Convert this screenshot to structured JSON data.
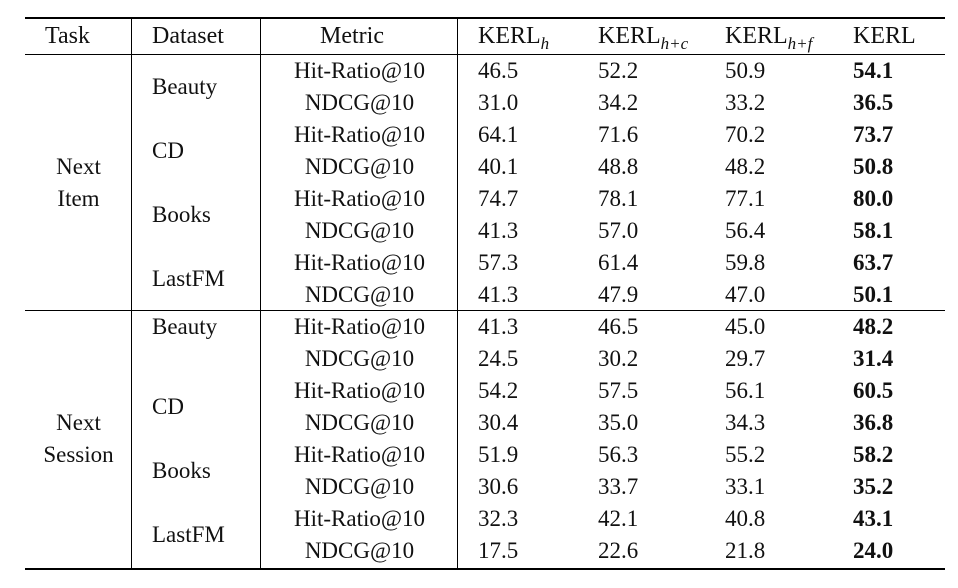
{
  "header": {
    "task": "Task",
    "dataset": "Dataset",
    "metric": "Metric",
    "variants": [
      {
        "base": "KERL",
        "sub": "h"
      },
      {
        "base": "KERL",
        "sub": "h+c"
      },
      {
        "base": "KERL",
        "sub": "h+f"
      },
      {
        "base": "KERL",
        "sub": ""
      }
    ]
  },
  "groups": [
    {
      "task_lines": [
        "Next",
        "Item"
      ],
      "datasets": [
        {
          "name": "Beauty",
          "rows": [
            {
              "metric": "Hit-Ratio@10",
              "values": [
                "46.5",
                "52.2",
                "50.9",
                "54.1"
              ]
            },
            {
              "metric": "NDCG@10",
              "values": [
                "31.0",
                "34.2",
                "33.2",
                "36.5"
              ]
            }
          ]
        },
        {
          "name": "CD",
          "rows": [
            {
              "metric": "Hit-Ratio@10",
              "values": [
                "64.1",
                "71.6",
                "70.2",
                "73.7"
              ]
            },
            {
              "metric": "NDCG@10",
              "values": [
                "40.1",
                "48.8",
                "48.2",
                "50.8"
              ]
            }
          ]
        },
        {
          "name": "Books",
          "rows": [
            {
              "metric": "Hit-Ratio@10",
              "values": [
                "74.7",
                "78.1",
                "77.1",
                "80.0"
              ]
            },
            {
              "metric": "NDCG@10",
              "values": [
                "41.3",
                "57.0",
                "56.4",
                "58.1"
              ]
            }
          ]
        },
        {
          "name": "LastFM",
          "rows": [
            {
              "metric": "Hit-Ratio@10",
              "values": [
                "57.3",
                "61.4",
                "59.8",
                "63.7"
              ]
            },
            {
              "metric": "NDCG@10",
              "values": [
                "41.3",
                "47.9",
                "47.0",
                "50.1"
              ]
            }
          ]
        }
      ]
    },
    {
      "task_lines": [
        "Next",
        "Session"
      ],
      "datasets": [
        {
          "name": "Beauty",
          "rows": [
            {
              "metric": "Hit-Ratio@10",
              "values": [
                "41.3",
                "46.5",
                "45.0",
                "48.2"
              ]
            },
            {
              "metric": "NDCG@10",
              "values": [
                "24.5",
                "30.2",
                "29.7",
                "31.4"
              ]
            }
          ]
        },
        {
          "name": "CD",
          "rows": [
            {
              "metric": "Hit-Ratio@10",
              "values": [
                "54.2",
                "57.5",
                "56.1",
                "60.5"
              ]
            },
            {
              "metric": "NDCG@10",
              "values": [
                "30.4",
                "35.0",
                "34.3",
                "36.8"
              ]
            }
          ]
        },
        {
          "name": "Books",
          "rows": [
            {
              "metric": "Hit-Ratio@10",
              "values": [
                "51.9",
                "56.3",
                "55.2",
                "58.2"
              ]
            },
            {
              "metric": "NDCG@10",
              "values": [
                "30.6",
                "33.7",
                "33.1",
                "35.2"
              ]
            }
          ]
        },
        {
          "name": "LastFM",
          "rows": [
            {
              "metric": "Hit-Ratio@10",
              "values": [
                "32.3",
                "42.1",
                "40.8",
                "43.1"
              ]
            },
            {
              "metric": "NDCG@10",
              "values": [
                "17.5",
                "22.6",
                "21.8",
                "24.0"
              ]
            }
          ]
        }
      ]
    }
  ]
}
